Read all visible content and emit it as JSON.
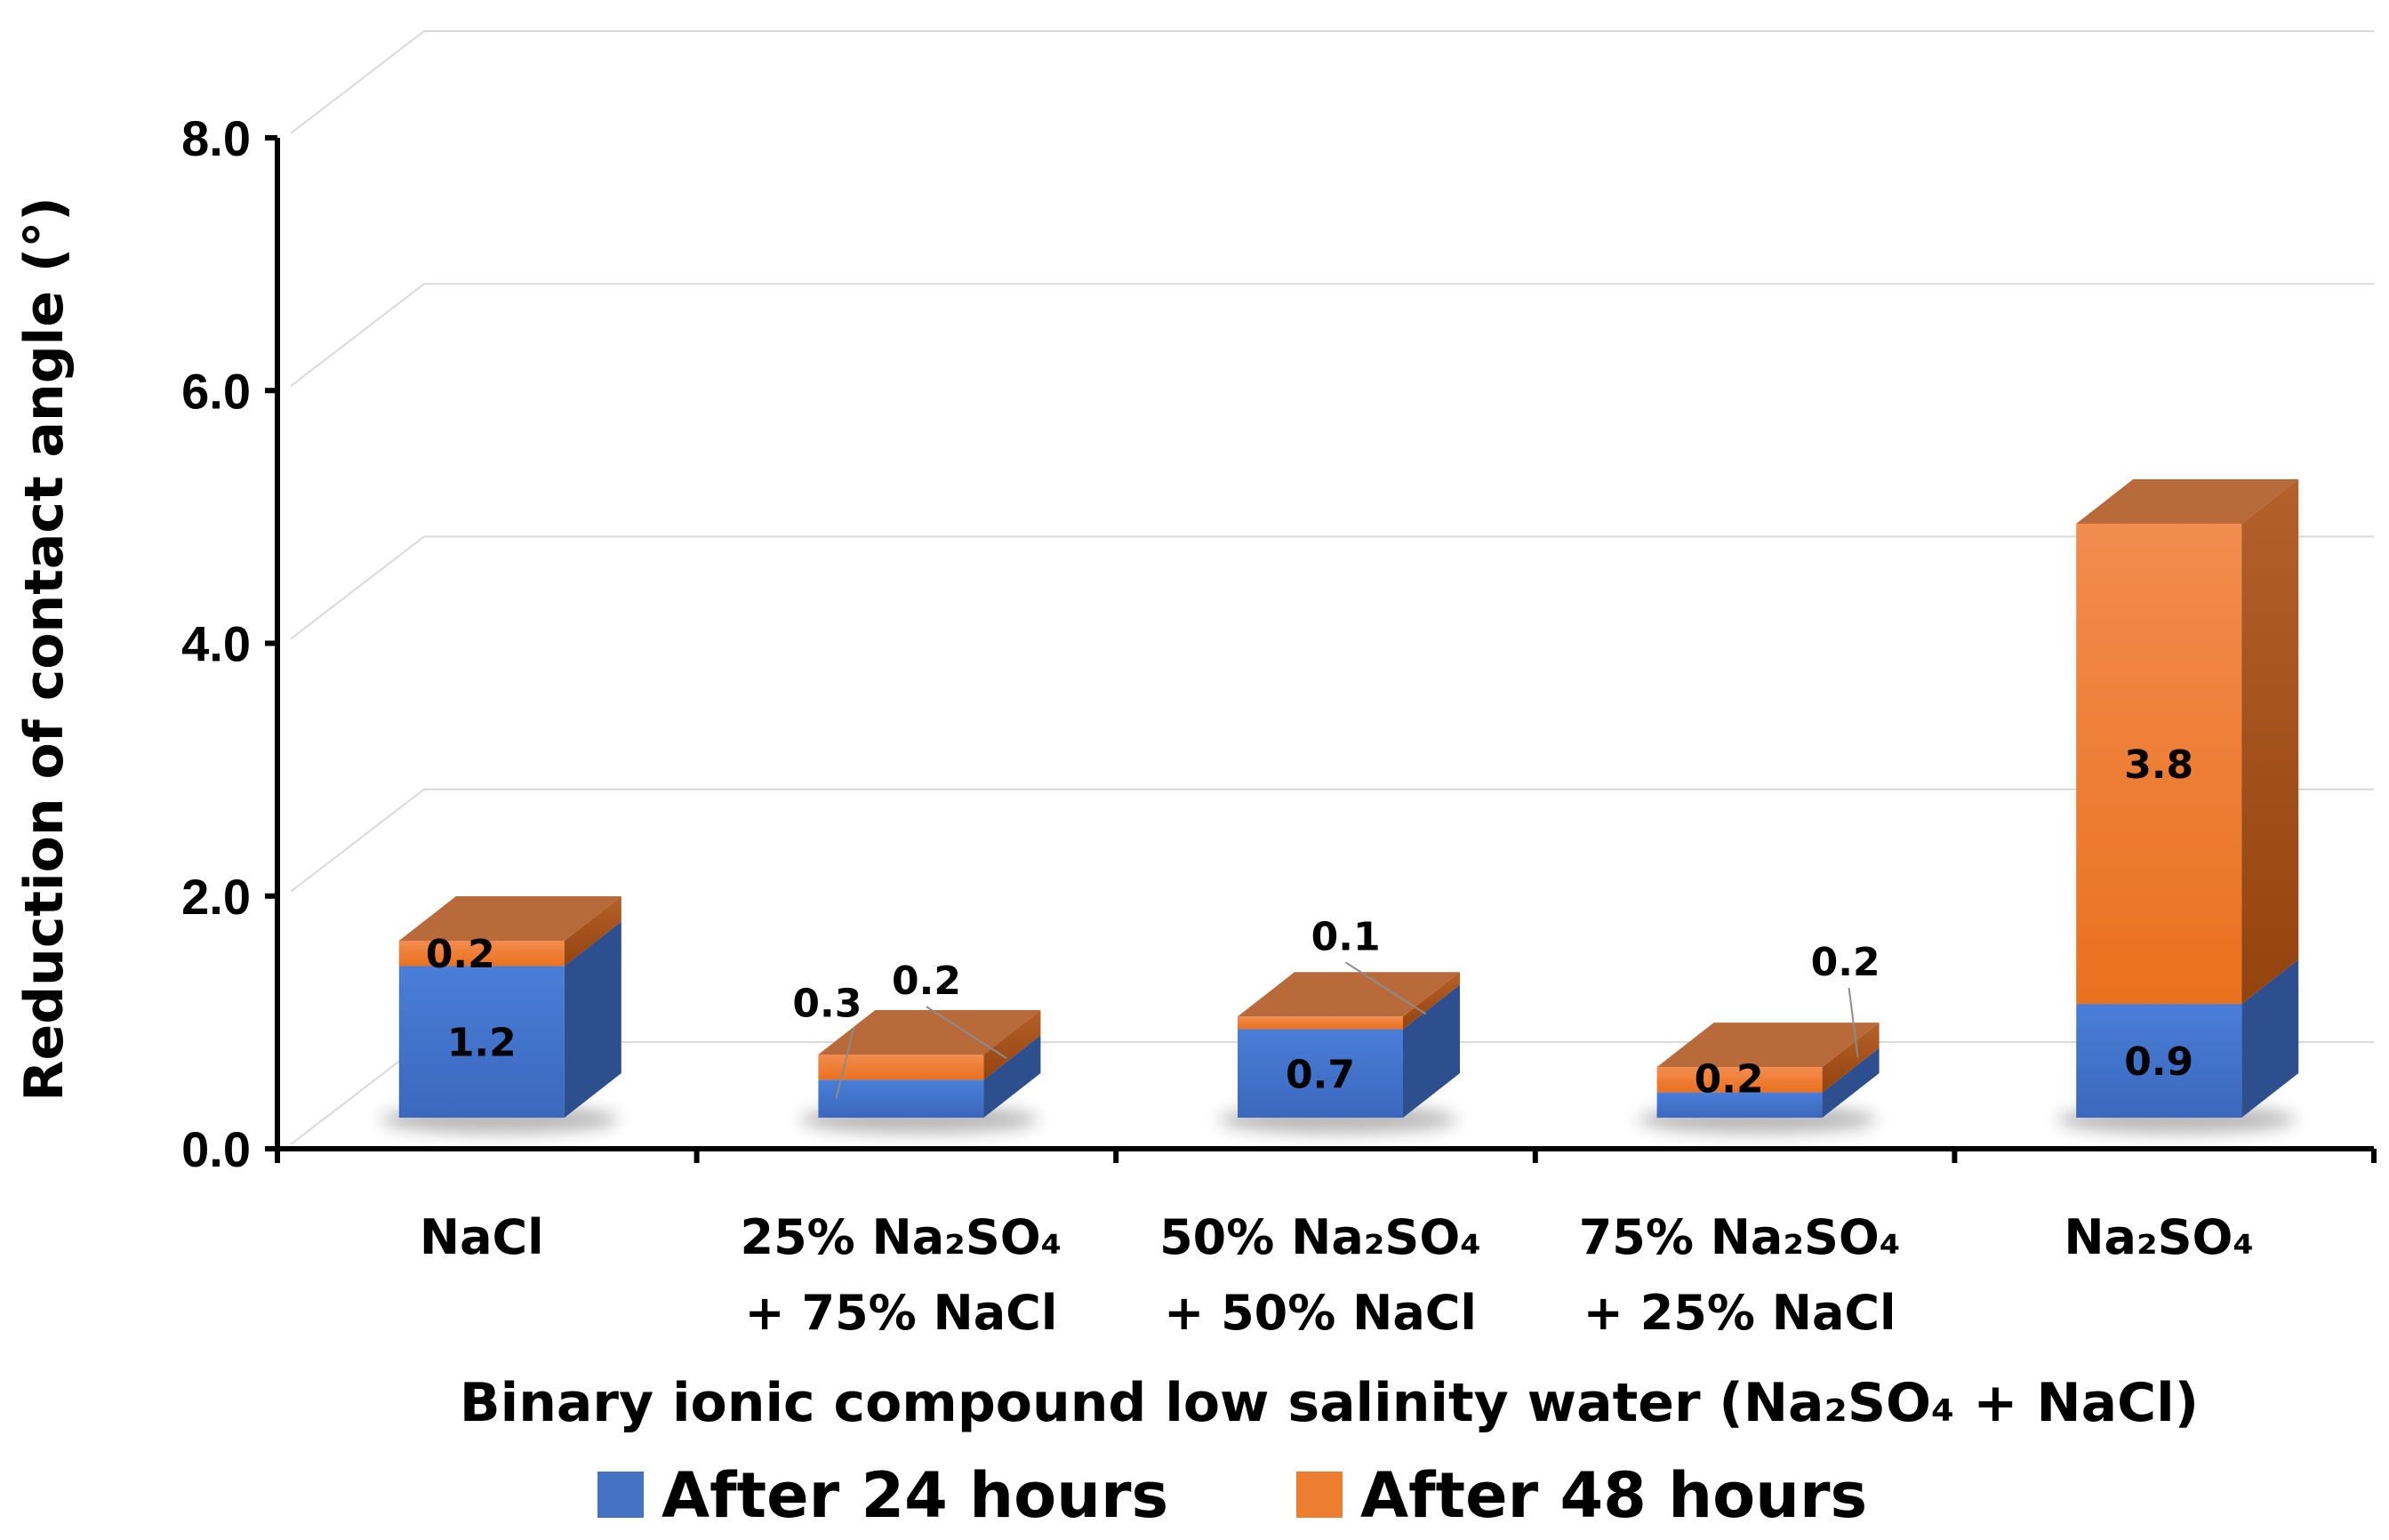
{
  "chart_data": {
    "type": "bar",
    "stacked": true,
    "three_d": true,
    "title": "",
    "xlabel": "Binary ionic compound low salinity water (Na₂SO₄ + NaCl)",
    "ylabel": "Reduction of contact angle (°)",
    "ylim": [
      0,
      8
    ],
    "yticks": [
      "0.0",
      "2.0",
      "4.0",
      "6.0",
      "8.0"
    ],
    "grid": true,
    "legend_position": "bottom",
    "categories": [
      [
        "NaCl"
      ],
      [
        "25% Na₂SO₄",
        "+ 75% NaCl"
      ],
      [
        "50% Na₂SO₄",
        "+ 50% NaCl"
      ],
      [
        "75% Na₂SO₄",
        "+ 25% NaCl"
      ],
      [
        "Na₂SO₄"
      ]
    ],
    "series": [
      {
        "name": "After 24 hours",
        "color": "#4472c4",
        "values": [
          1.2,
          0.3,
          0.7,
          0.2,
          0.9
        ]
      },
      {
        "name": "After 48 hours",
        "color": "#ed7d31",
        "values": [
          0.2,
          0.2,
          0.1,
          0.2,
          3.8
        ]
      }
    ],
    "data_labels": [
      [
        "1.2",
        "0.3",
        "0.7",
        "0.2",
        "0.9"
      ],
      [
        "0.2",
        "0.2",
        "0.1",
        "0.2",
        "3.8"
      ]
    ]
  }
}
